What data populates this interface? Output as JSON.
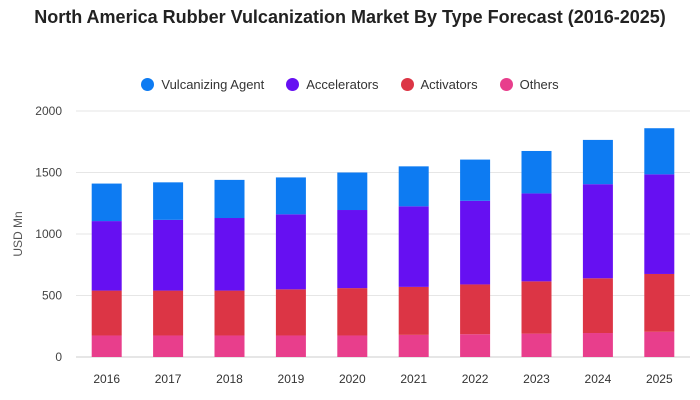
{
  "chart_data": {
    "type": "bar",
    "stacked": true,
    "title": "North America Rubber Vulcanization Market By Type Forecast (2016-2025)",
    "xlabel": "",
    "ylabel": "USD Mn",
    "ylim": [
      0,
      2000
    ],
    "yticks": [
      0,
      500,
      1000,
      1500,
      2000
    ],
    "grid": true,
    "legend_position": "top",
    "categories": [
      "2016",
      "2017",
      "2018",
      "2019",
      "2020",
      "2021",
      "2022",
      "2023",
      "2024",
      "2025"
    ],
    "series": [
      {
        "name": "Others",
        "color": "#e83e8c",
        "values": [
          175,
          175,
          175,
          175,
          175,
          180,
          185,
          190,
          195,
          205
        ]
      },
      {
        "name": "Activators",
        "color": "#dc3545",
        "values": [
          365,
          365,
          365,
          375,
          385,
          390,
          405,
          425,
          445,
          470
        ]
      },
      {
        "name": "Accelerators",
        "color": "#6610f2",
        "values": [
          565,
          575,
          590,
          610,
          635,
          655,
          680,
          715,
          765,
          810
        ]
      },
      {
        "name": "Vulcanizing Agent",
        "color": "#0d7bf2",
        "values": [
          305,
          305,
          310,
          300,
          305,
          325,
          335,
          345,
          360,
          375
        ]
      }
    ],
    "legend_order": [
      "Vulcanizing Agent",
      "Accelerators",
      "Activators",
      "Others"
    ]
  }
}
